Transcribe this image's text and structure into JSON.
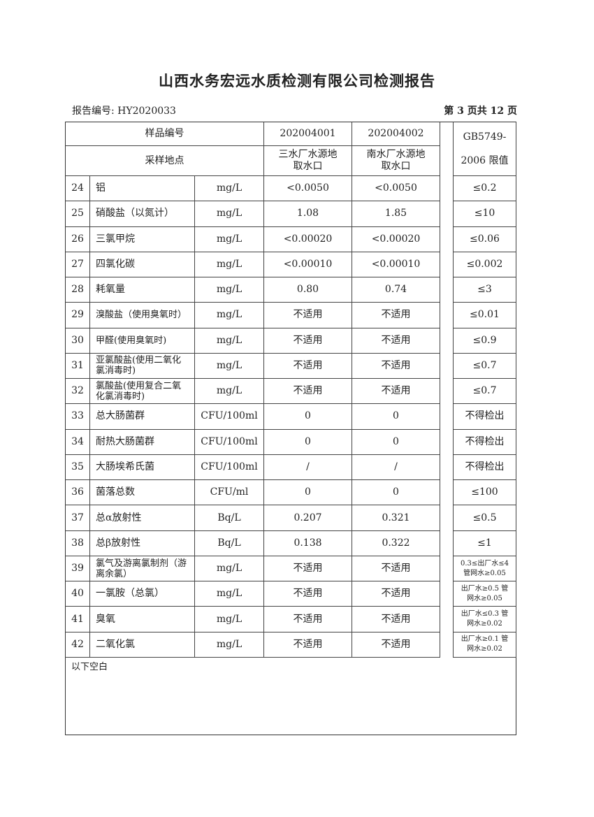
{
  "title": "山西水务宏远水质检测有限公司检测报告",
  "report_no": "报告编号: HY2020033",
  "page": "第 3 页共 12 页",
  "header": {
    "sample_no_label": "样品编号",
    "sample_site_label": "采样地点",
    "samples": [
      {
        "id": "202004001",
        "site": "三水厂水源地取水口"
      },
      {
        "id": "202004002",
        "site": "南水厂水源地取水口"
      }
    ],
    "limit_label": "GB5749-2006 限值"
  },
  "rows": [
    {
      "no": "24",
      "item": "铝",
      "unit": "mg/L",
      "v1": "<0.0050",
      "v2": "<0.0050",
      "limit": "≤0.2"
    },
    {
      "no": "25",
      "item": "硝酸盐（以氮计）",
      "unit": "mg/L",
      "v1": "1.08",
      "v2": "1.85",
      "limit": "≤10"
    },
    {
      "no": "26",
      "item": "三氯甲烷",
      "unit": "mg/L",
      "v1": "<0.00020",
      "v2": "<0.00020",
      "limit": "≤0.06"
    },
    {
      "no": "27",
      "item": "四氯化碳",
      "unit": "mg/L",
      "v1": "<0.00010",
      "v2": "<0.00010",
      "limit": "≤0.002"
    },
    {
      "no": "28",
      "item": "耗氧量",
      "unit": "mg/L",
      "v1": "0.80",
      "v2": "0.74",
      "limit": "≤3"
    },
    {
      "no": "29",
      "item": "溴酸盐（使用臭氧时）",
      "unit": "mg/L",
      "v1": "不适用",
      "v2": "不适用",
      "limit": "≤0.01"
    },
    {
      "no": "30",
      "item": "甲醛(使用臭氧时)",
      "unit": "mg/L",
      "v1": "不适用",
      "v2": "不适用",
      "limit": "≤0.9"
    },
    {
      "no": "31",
      "item": "亚氯酸盐(使用二氧化氯消毒时)",
      "unit": "mg/L",
      "v1": "不适用",
      "v2": "不适用",
      "limit": "≤0.7"
    },
    {
      "no": "32",
      "item": "氯酸盐(使用复合二氧化氯消毒时)",
      "unit": "mg/L",
      "v1": "不适用",
      "v2": "不适用",
      "limit": "≤0.7"
    },
    {
      "no": "33",
      "item": "总大肠菌群",
      "unit": "CFU/100ml",
      "v1": "0",
      "v2": "0",
      "limit": "不得检出"
    },
    {
      "no": "34",
      "item": "耐热大肠菌群",
      "unit": "CFU/100ml",
      "v1": "0",
      "v2": "0",
      "limit": "不得检出"
    },
    {
      "no": "35",
      "item": "大肠埃希氏菌",
      "unit": "CFU/100ml",
      "v1": "/",
      "v2": "/",
      "limit": "不得检出"
    },
    {
      "no": "36",
      "item": "菌落总数",
      "unit": "CFU/ml",
      "v1": "0",
      "v2": "0",
      "limit": "≤100"
    },
    {
      "no": "37",
      "item": "总α放射性",
      "unit": "Bq/L",
      "v1": "0.207",
      "v2": "0.321",
      "limit": "≤0.5"
    },
    {
      "no": "38",
      "item": "总β放射性",
      "unit": "Bq/L",
      "v1": "0.138",
      "v2": "0.322",
      "limit": "≤1"
    },
    {
      "no": "39",
      "item": "氯气及游离氯制剂（游离余氯）",
      "unit": "mg/L",
      "v1": "不适用",
      "v2": "不适用",
      "limit": "0.3≤出厂水≤4 管网水≥0.05"
    },
    {
      "no": "40",
      "item": "一氯胺（总氯）",
      "unit": "mg/L",
      "v1": "不适用",
      "v2": "不适用",
      "limit": "出厂水≥0.5 管网水≥0.05"
    },
    {
      "no": "41",
      "item": "臭氧",
      "unit": "mg/L",
      "v1": "不适用",
      "v2": "不适用",
      "limit": "出厂水≤0.3 管网水≥0.02"
    },
    {
      "no": "42",
      "item": "二氧化氯",
      "unit": "mg/L",
      "v1": "不适用",
      "v2": "不适用",
      "limit": "出厂水≥0.1 管网水≥0.02"
    }
  ],
  "footer_note": "以下空白"
}
